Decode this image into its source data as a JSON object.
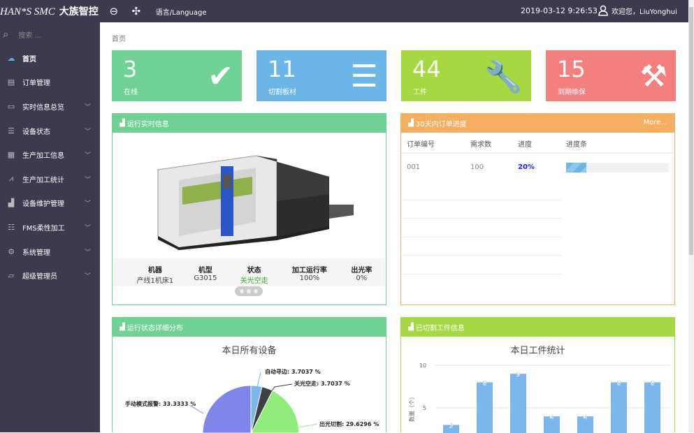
{
  "header": {
    "logo": "HAN*S SMC",
    "logo_cn": "大族智控",
    "back_icon": "arrow-left-circle-icon",
    "fullscreen_icon": "expand-icon",
    "language": "语言/Language",
    "datetime": "2019-03-12 9:26:53",
    "user_icon": "user-icon",
    "welcome": "欢迎您，LiuYonghui"
  },
  "sidebar": {
    "search_placeholder": "搜索 ...",
    "items": [
      {
        "label": "首页",
        "icon": "cloud-icon",
        "chevron": false
      },
      {
        "label": "订单管理",
        "icon": "document-icon",
        "chevron": false
      },
      {
        "label": "实时信息总览",
        "icon": "monitor-icon",
        "chevron": true
      },
      {
        "label": "设备状态",
        "icon": "list-icon",
        "chevron": true
      },
      {
        "label": "生产加工信息",
        "icon": "table-icon",
        "chevron": true
      },
      {
        "label": "生产加工统计",
        "icon": "line-chart-icon",
        "chevron": true
      },
      {
        "label": "设备维护管理",
        "icon": "bar-chart-icon",
        "chevron": true
      },
      {
        "label": "FMS柔性加工",
        "icon": "checklist-icon",
        "chevron": true
      },
      {
        "label": "系统管理",
        "icon": "gears-icon",
        "chevron": true
      },
      {
        "label": "超级管理员",
        "icon": "folder-icon",
        "chevron": true
      }
    ]
  },
  "breadcrumb": "首页",
  "stats": [
    {
      "value": "3",
      "label": "在线",
      "icon": "check-icon",
      "color": "#6fd194"
    },
    {
      "value": "11",
      "label": "切割板材",
      "icon": "sliders-icon",
      "color": "#6cb5e8"
    },
    {
      "value": "44",
      "label": "工件",
      "icon": "wrench-icon",
      "color": "#a5d843"
    },
    {
      "value": "15",
      "label": "到期维保",
      "icon": "hammer-icon",
      "color": "#f47f7f"
    }
  ],
  "realtime": {
    "title": "运行实时信息",
    "columns": [
      {
        "key": "机器",
        "value": "产线1机床1"
      },
      {
        "key": "机型",
        "value": "G3015"
      },
      {
        "key": "状态",
        "value": "关光空走",
        "status_color": "#3aa832"
      },
      {
        "key": "加工运行率",
        "value": "100%"
      },
      {
        "key": "出光率",
        "value": "0%"
      }
    ]
  },
  "orders": {
    "title": "30天内订单进度",
    "more": "More...",
    "headers": [
      "订单编号",
      "需求数",
      "进度",
      "进度条"
    ],
    "rows": [
      {
        "id": "001",
        "qty": "100",
        "progress": "20%",
        "progress_value": 20
      }
    ]
  },
  "status_dist": {
    "title": "运行状态详细分布"
  },
  "parts": {
    "title": "已切割工件信息"
  },
  "chart_data": [
    {
      "type": "pie",
      "title": "本日所有设备",
      "slices": [
        {
          "name": "自动寻边",
          "value": 3.7037,
          "label": "自动寻边: 3.7037 %",
          "color": "#7eb6ea"
        },
        {
          "name": "关光空走",
          "value": 3.7037,
          "label": "关光空走: 3.7037 %",
          "color": "#3f3f46"
        },
        {
          "name": "出光切割",
          "value": 29.6296,
          "label": "出光切割: 29.6296 %",
          "color": "#90ed7d"
        },
        {
          "name": "手动模式报警",
          "value": 33.3333,
          "label": "手动模式报警: 33.3333 %",
          "color": "#8085e9"
        }
      ]
    },
    {
      "type": "bar",
      "title": "本日工件统计",
      "ylabel": "数量（个）",
      "yticks": [
        "5",
        "10"
      ],
      "ylim": [
        0,
        10
      ],
      "values": [
        3,
        8,
        9,
        4,
        4,
        8,
        8
      ],
      "color": "#7cb5ec"
    }
  ]
}
